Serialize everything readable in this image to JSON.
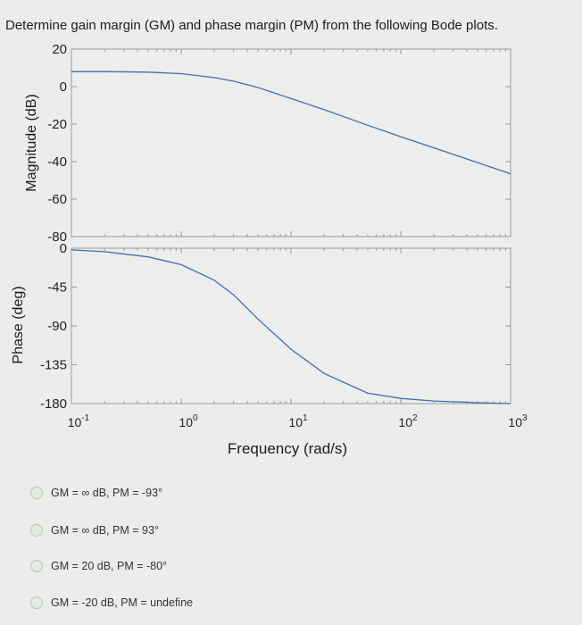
{
  "question": "Determine gain margin (GM) and phase margin (PM) from the following Bode plots.",
  "chart_data": [
    {
      "type": "line",
      "ylabel": "Magnitude (dB)",
      "xscale": "log",
      "xlim": [
        0.1,
        1000
      ],
      "ylim": [
        -80,
        20
      ],
      "yticks": [
        "20",
        "0",
        "-20",
        "-40",
        "-60",
        "-80"
      ],
      "series": [
        {
          "x": [
            0.1,
            0.2,
            0.5,
            1,
            2,
            3,
            5,
            10,
            20,
            50,
            100,
            200,
            500,
            1000
          ],
          "values": [
            8,
            8,
            7.7,
            6.9,
            4.8,
            2.9,
            -0.5,
            -6.4,
            -12.3,
            -20.6,
            -26.7,
            -32.6,
            -40.5,
            -46.5
          ]
        }
      ]
    },
    {
      "type": "line",
      "ylabel": "Phase (deg)",
      "xlabel": "Frequency  (rad/s)",
      "xscale": "log",
      "xlim": [
        0.1,
        1000
      ],
      "ylim": [
        -180,
        0
      ],
      "yticks": [
        "0",
        "-45",
        "-90",
        "-135",
        "-180"
      ],
      "xticks": [
        {
          "base": "10",
          "exp": "-1"
        },
        {
          "base": "10",
          "exp": "0"
        },
        {
          "base": "10",
          "exp": "1"
        },
        {
          "base": "10",
          "exp": "2"
        },
        {
          "base": "10",
          "exp": "3"
        }
      ],
      "series": [
        {
          "x": [
            0.1,
            0.2,
            0.5,
            1,
            2,
            3,
            5,
            10,
            20,
            50,
            100,
            200,
            500,
            1000
          ],
          "values": [
            -2,
            -4,
            -10,
            -19,
            -37,
            -54,
            -82,
            -117,
            -145,
            -168,
            -174,
            -177,
            -179,
            -180
          ]
        }
      ]
    }
  ],
  "options": [
    {
      "label": "GM = ∞ dB, PM = -93°"
    },
    {
      "label": "GM = ∞ dB, PM = 93°"
    },
    {
      "label": "GM = 20 dB, PM = -80°"
    },
    {
      "label": "GM = -20 dB, PM = undefine"
    }
  ],
  "colors": {
    "line": "#3f6fb6",
    "axes": "#9a9a9a",
    "plot_bg": "#ededeb",
    "page_bg": "#ececea"
  }
}
